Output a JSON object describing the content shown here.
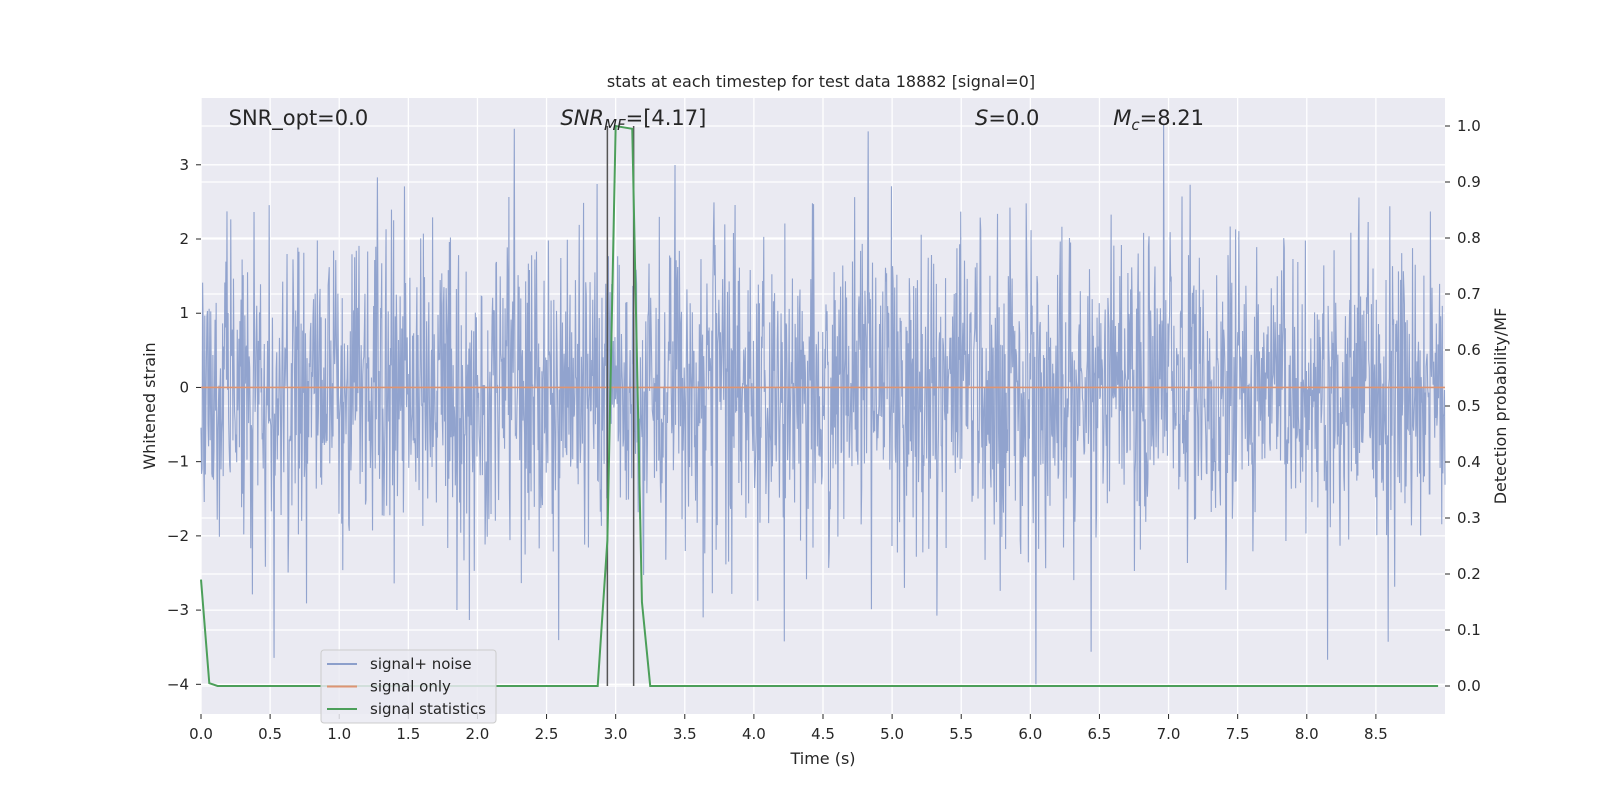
{
  "chart_data": {
    "type": "line",
    "title": "stats at each timestep for test data 18882 [signal=0]",
    "xlabel": "Time (s)",
    "ylabel_left": "Whitened strain",
    "ylabel_right": "Detection probability/MF",
    "xlim": [
      0,
      9.0
    ],
    "ylim_left": [
      -4.4,
      3.9
    ],
    "ylim_right": [
      -0.05,
      1.05
    ],
    "xticks": [
      "0.0",
      "0.5",
      "1.0",
      "1.5",
      "2.0",
      "2.5",
      "3.0",
      "3.5",
      "4.0",
      "4.5",
      "5.0",
      "5.5",
      "6.0",
      "6.5",
      "7.0",
      "7.5",
      "8.0",
      "8.5"
    ],
    "yticks_left": [
      "3",
      "2",
      "1",
      "0",
      "−1",
      "−2",
      "−3",
      "−4"
    ],
    "yticks_right": [
      "1.0",
      "0.9",
      "0.8",
      "0.7",
      "0.6",
      "0.5",
      "0.4",
      "0.3",
      "0.2",
      "0.1",
      "0.0"
    ],
    "grid": true,
    "legend_position": "lower-left",
    "annotations": [
      {
        "text": "SNR_opt=0.0",
        "x": 0.2
      },
      {
        "text": "=[4.17]",
        "prefix": "SNR",
        "sub": "MF",
        "x": 2.6
      },
      {
        "text": "=0.0",
        "prefix": "S",
        "sub": "",
        "x": 5.6
      },
      {
        "text": "=8.21",
        "prefix": "M",
        "sub": "c",
        "x": 6.6
      }
    ],
    "vlines": [
      2.94,
      3.13
    ],
    "series": [
      {
        "name": "signal+ noise",
        "color": "#8c9fcb",
        "axis": "left",
        "kind": "noise",
        "sigma": 1.0,
        "n_points": 2300,
        "range": [
          -4.0,
          3.55
        ]
      },
      {
        "name": "signal only",
        "color": "#dd9473",
        "axis": "left",
        "x": [
          0,
          9.0
        ],
        "y": [
          0,
          0
        ]
      },
      {
        "name": "signal statistics",
        "color": "#4c9f5a",
        "axis": "right",
        "x": [
          0,
          0.06,
          0.12,
          0.5,
          1.0,
          1.5,
          2.0,
          2.5,
          2.87,
          2.94,
          3.0,
          3.12,
          3.19,
          3.25,
          3.5,
          4.0,
          5.0,
          6.0,
          7.0,
          8.0,
          8.95
        ],
        "y": [
          0.19,
          0.005,
          0.0,
          0.0,
          0.0,
          0.0,
          0.0,
          0.0,
          0.0,
          0.26,
          1.0,
          0.995,
          0.15,
          0.0,
          0.0,
          0.0,
          0.0,
          0.0,
          0.0,
          0.0,
          0.0
        ]
      }
    ]
  },
  "colors": {
    "plot_bg": "#eaeaf2",
    "grid": "#ffffff",
    "vline": "#555555"
  }
}
